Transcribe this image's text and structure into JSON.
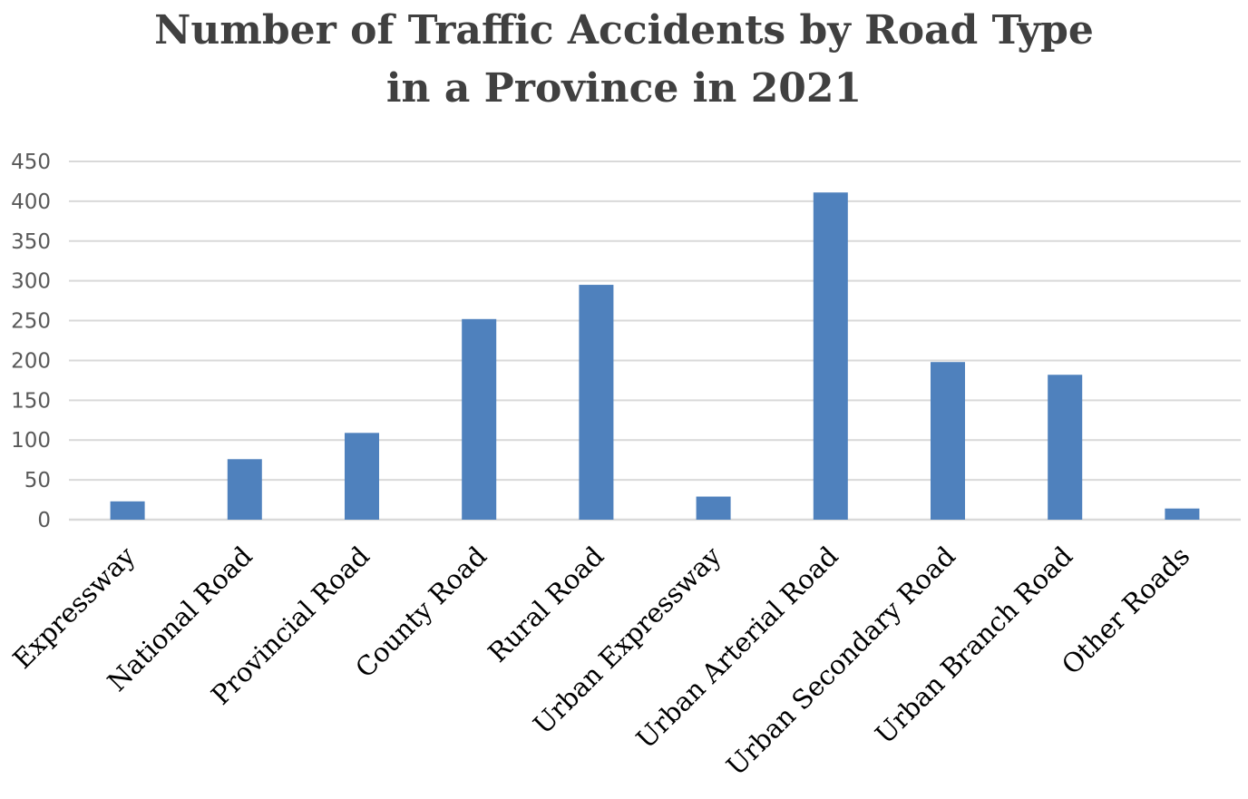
{
  "chart_data": {
    "type": "bar",
    "title_lines": [
      "Number of Traffic Accidents by Road Type",
      "in a Province in 2021"
    ],
    "categories": [
      "Expressway",
      "National Road",
      "Provincial Road",
      "County Road",
      "Rural Road",
      "Urban Expressway",
      "Urban Arterial Road",
      "Urban Secondary Road",
      "Urban Branch Road",
      "Other Roads"
    ],
    "series": [
      {
        "values": [
          23,
          76,
          109,
          252,
          295,
          29,
          411,
          198,
          182,
          14
        ]
      }
    ],
    "ylim": [
      0,
      450
    ],
    "yticks": [
      "0",
      "50",
      "100",
      "150",
      "200",
      "250",
      "300",
      "350",
      "400",
      "450"
    ],
    "xlabel": "",
    "ylabel": "",
    "grid": true,
    "legend": "none",
    "colors": {
      "bar": "#4f81bd",
      "grid": "#d9d9d9",
      "axis": "#d9d9d9"
    }
  }
}
